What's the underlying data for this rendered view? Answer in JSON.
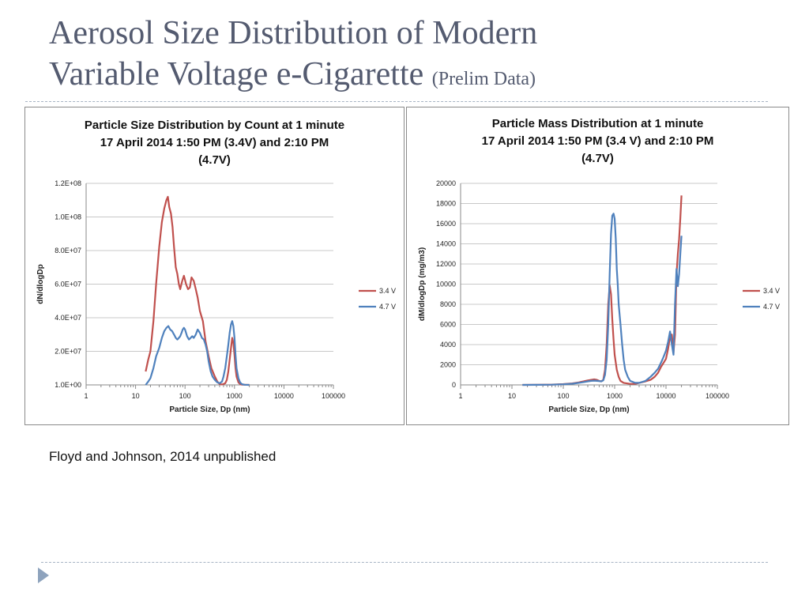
{
  "slide": {
    "title_line1": "Aerosol Size Distribution of Modern",
    "title_line2": "Variable Voltage e-Cigarette",
    "subtitle": "(Prelim Data)",
    "citation": "Floyd and Johnson, 2014 unpublished"
  },
  "colors": {
    "series_3_4V": "#c0504d",
    "series_4_7V": "#4f81bd",
    "title": "#545b70",
    "rule": "#a7b4c4",
    "bullet": "#8ea3bd"
  },
  "icons": {
    "bullet": "triangle-bullet-icon"
  },
  "chart_data": [
    {
      "type": "line",
      "title_lines": [
        "Particle Size Distribution by Count at 1 minute",
        "17 April 2014 1:50 PM (3.4V) and 2:10 PM",
        "(4.7V)"
      ],
      "xlabel": "Particle Size, Dp (nm)",
      "ylabel": "dN/dlogDp",
      "x_scale": "log",
      "xlim": [
        1,
        100000
      ],
      "x_ticks": [
        1,
        10,
        100,
        1000,
        10000,
        100000
      ],
      "x_tick_labels": [
        "1",
        "10",
        "100",
        "1000",
        "10000",
        "100000"
      ],
      "ylim": [
        0,
        120000000
      ],
      "y_ticks": [
        0,
        20000000,
        40000000,
        60000000,
        80000000,
        100000000,
        120000000
      ],
      "y_tick_labels": [
        "1.0E+00",
        "2.0E+07",
        "4.0E+07",
        "6.0E+07",
        "8.0E+07",
        "1.0E+08",
        "1.2E+08"
      ],
      "grid": true,
      "legend": "right",
      "series": [
        {
          "name": "3.4 V",
          "color": "#c0504d",
          "x": [
            16,
            18,
            20,
            23,
            26,
            30,
            34,
            38,
            42,
            45,
            48,
            52,
            56,
            60,
            65,
            70,
            75,
            80,
            88,
            95,
            105,
            115,
            125,
            135,
            150,
            165,
            180,
            200,
            230,
            260,
            300,
            340,
            400,
            450,
            500,
            560,
            600,
            650,
            700,
            750,
            800,
            850,
            900,
            950,
            1000,
            1050,
            1100,
            1200,
            1300,
            1400,
            1600,
            2000
          ],
          "y": [
            8000000,
            15000000,
            20000000,
            38000000,
            60000000,
            82000000,
            97000000,
            105000000,
            110000000,
            112000000,
            106000000,
            102000000,
            94000000,
            82000000,
            70000000,
            66000000,
            60000000,
            57000000,
            62000000,
            65000000,
            60000000,
            57000000,
            58000000,
            64000000,
            62000000,
            57000000,
            52000000,
            44000000,
            38000000,
            26000000,
            17000000,
            10000000,
            5000000,
            2000000,
            500000,
            300000,
            500000,
            1000000,
            3000000,
            8000000,
            15000000,
            22000000,
            28000000,
            25000000,
            18000000,
            10000000,
            5000000,
            1500000,
            500000,
            200000,
            100000,
            0
          ]
        },
        {
          "name": "4.7 V",
          "color": "#4f81bd",
          "x": [
            16,
            18,
            20,
            23,
            26,
            30,
            34,
            38,
            42,
            46,
            50,
            55,
            60,
            65,
            70,
            75,
            80,
            85,
            90,
            95,
            100,
            110,
            120,
            130,
            140,
            150,
            165,
            180,
            200,
            220,
            240,
            260,
            280,
            300,
            330,
            360,
            400,
            450,
            500,
            560,
            600,
            650,
            700,
            750,
            800,
            850,
            900,
            950,
            1000,
            1050,
            1100,
            1200,
            1300,
            1400,
            1600,
            2000
          ],
          "y": [
            0,
            2000000,
            4000000,
            10000000,
            17000000,
            22000000,
            28000000,
            32000000,
            34000000,
            35000000,
            33000000,
            32000000,
            30000000,
            28000000,
            27000000,
            28000000,
            29000000,
            31000000,
            33000000,
            34000000,
            33000000,
            29000000,
            27000000,
            28000000,
            29000000,
            28000000,
            30000000,
            33000000,
            31000000,
            28000000,
            27000000,
            24000000,
            20000000,
            14000000,
            8000000,
            5000000,
            3000000,
            1500000,
            1000000,
            2000000,
            5000000,
            10000000,
            17000000,
            24000000,
            31000000,
            36000000,
            38000000,
            35000000,
            28000000,
            18000000,
            10000000,
            4000000,
            1500000,
            500000,
            100000,
            0
          ]
        }
      ]
    },
    {
      "type": "line",
      "title_lines": [
        "Particle Mass Distribution at 1 minute",
        "17 April 2014 1:50 PM (3.4 V) and 2:10 PM",
        "(4.7V)"
      ],
      "xlabel": "Particle Size, Dp (nm)",
      "ylabel": "dM/dlogDp (mg/m3)",
      "x_scale": "log",
      "xlim": [
        1,
        100000
      ],
      "x_ticks": [
        1,
        10,
        100,
        1000,
        10000,
        100000
      ],
      "x_tick_labels": [
        "1",
        "10",
        "100",
        "1000",
        "10000",
        "100000"
      ],
      "ylim": [
        0,
        20000
      ],
      "y_ticks": [
        0,
        2000,
        4000,
        6000,
        8000,
        10000,
        12000,
        14000,
        16000,
        18000,
        20000
      ],
      "y_tick_labels": [
        "0",
        "2000",
        "4000",
        "6000",
        "8000",
        "10000",
        "12000",
        "14000",
        "16000",
        "18000",
        "20000"
      ],
      "grid": true,
      "legend": "right",
      "series": [
        {
          "name": "3.4 V",
          "color": "#c0504d",
          "x": [
            16,
            30,
            60,
            100,
            150,
            200,
            250,
            300,
            350,
            400,
            450,
            500,
            550,
            600,
            650,
            700,
            750,
            800,
            850,
            900,
            950,
            1000,
            1100,
            1200,
            1300,
            1500,
            2000,
            2500,
            3000,
            4000,
            5000,
            6000,
            7000,
            8000,
            9000,
            10000,
            11000,
            12000,
            13000,
            14000,
            15000,
            16000,
            17000,
            18000,
            19000,
            20000
          ],
          "y": [
            0,
            5,
            30,
            80,
            150,
            250,
            350,
            450,
            500,
            550,
            500,
            400,
            350,
            500,
            1500,
            4000,
            8000,
            9900,
            9000,
            6500,
            4500,
            3000,
            1500,
            800,
            400,
            200,
            100,
            100,
            200,
            350,
            500,
            800,
            1200,
            1800,
            2200,
            2600,
            3600,
            4800,
            5000,
            3200,
            5000,
            11000,
            13000,
            14500,
            16500,
            18800
          ]
        },
        {
          "name": "4.7 V",
          "color": "#4f81bd",
          "x": [
            16,
            30,
            60,
            100,
            150,
            200,
            250,
            300,
            350,
            400,
            450,
            500,
            550,
            600,
            650,
            700,
            750,
            800,
            850,
            900,
            950,
            1000,
            1050,
            1100,
            1150,
            1200,
            1300,
            1400,
            1500,
            1600,
            1800,
            2000,
            2500,
            3000,
            4000,
            5000,
            6000,
            7000,
            8000,
            9000,
            10000,
            11000,
            12000,
            13000,
            14000,
            15000,
            16000,
            17000,
            18000,
            19000,
            20000
          ],
          "y": [
            0,
            5,
            20,
            60,
            120,
            200,
            280,
            350,
            400,
            420,
            400,
            380,
            350,
            450,
            1000,
            2500,
            6000,
            11000,
            15000,
            16800,
            17000,
            16500,
            14500,
            11500,
            10000,
            8000,
            6000,
            4000,
            2500,
            1500,
            800,
            400,
            200,
            200,
            400,
            800,
            1200,
            1600,
            2200,
            2800,
            3400,
            4300,
            5300,
            4000,
            3000,
            8000,
            11500,
            9800,
            11000,
            13000,
            14800
          ]
        }
      ]
    }
  ]
}
